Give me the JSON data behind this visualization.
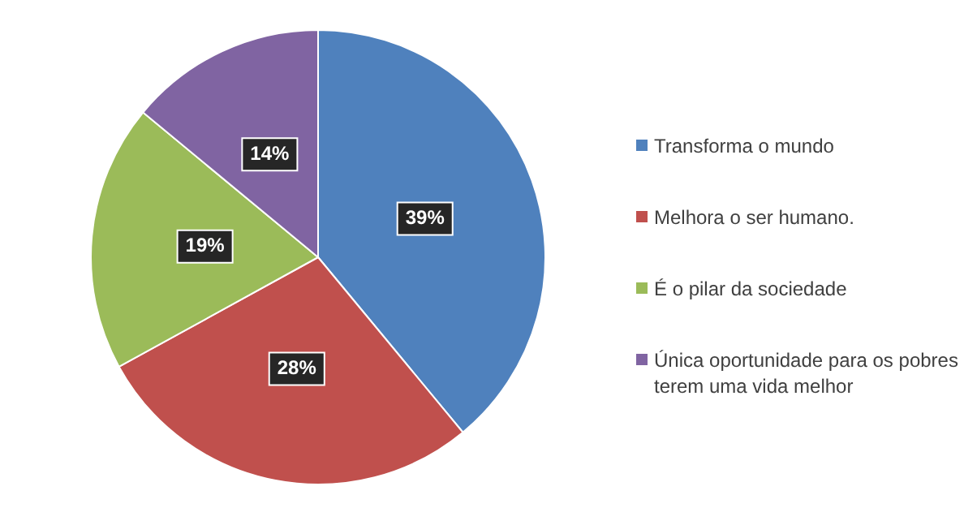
{
  "chart_data": {
    "type": "pie",
    "categories": [
      "Transforma o mundo",
      "Melhora o ser humano.",
      "É o pilar da sociedade",
      "Única oportunidade para os pobres terem uma vida melhor"
    ],
    "values": [
      39,
      28,
      19,
      14
    ],
    "colors": [
      "#4f81bd",
      "#c0504d",
      "#9bbb59",
      "#8064a2"
    ],
    "value_labels": [
      "39%",
      "28%",
      "19%",
      "14%"
    ],
    "legend": "right"
  }
}
